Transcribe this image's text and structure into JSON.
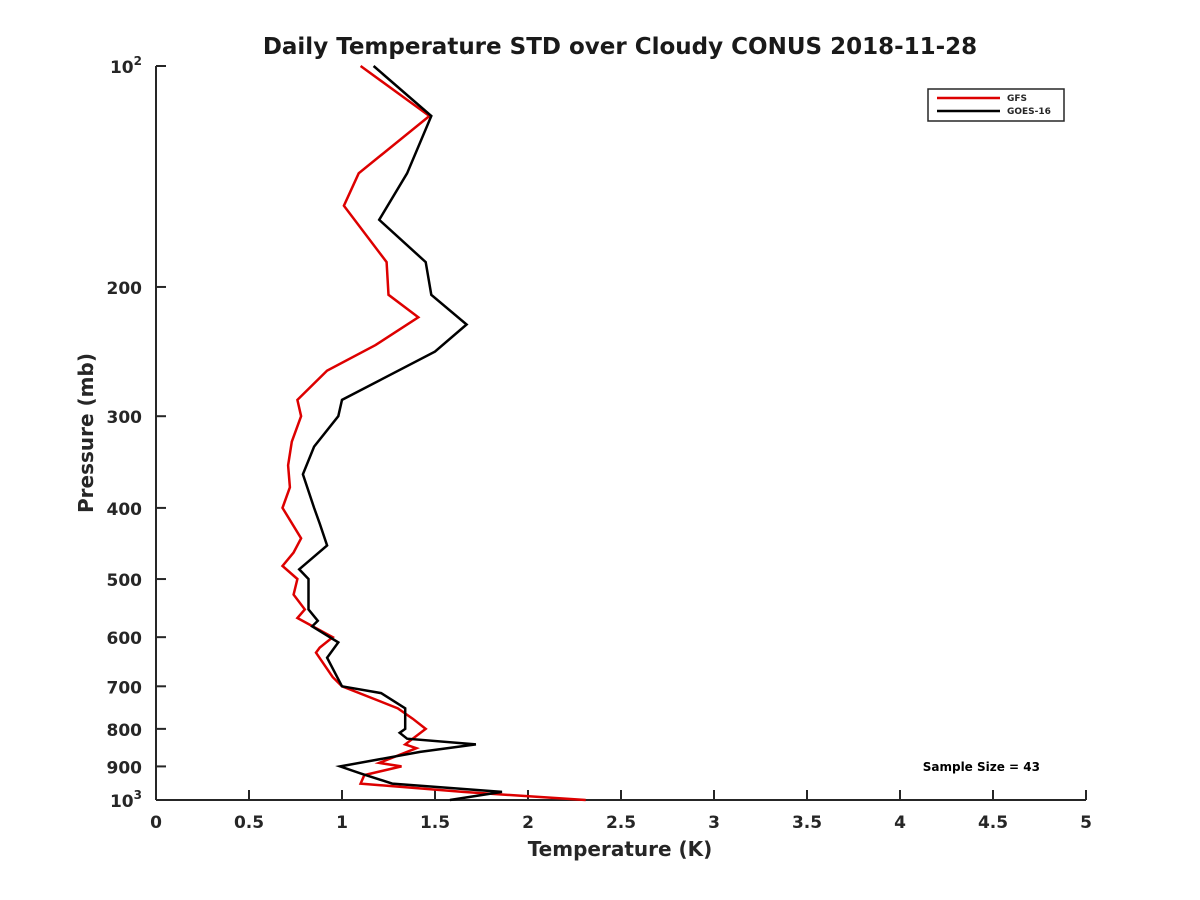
{
  "chart_data": {
    "type": "line",
    "title": "Daily Temperature STD over Cloudy CONUS 2018-11-28",
    "xlabel": "Temperature (K)",
    "ylabel": "Pressure (mb)",
    "xlim": [
      0,
      5
    ],
    "ylim": [
      100,
      1000
    ],
    "y_scale": "log",
    "y_reversed": true,
    "grid": false,
    "legend_position": "top-right",
    "annotation": "Sample Size = 43",
    "x_ticks": [
      {
        "value": 0,
        "label": "0"
      },
      {
        "value": 0.5,
        "label": "0.5"
      },
      {
        "value": 1,
        "label": "1"
      },
      {
        "value": 1.5,
        "label": "1.5"
      },
      {
        "value": 2,
        "label": "2"
      },
      {
        "value": 2.5,
        "label": "2.5"
      },
      {
        "value": 3,
        "label": "3"
      },
      {
        "value": 3.5,
        "label": "3.5"
      },
      {
        "value": 4,
        "label": "4"
      },
      {
        "value": 4.5,
        "label": "4.5"
      },
      {
        "value": 5,
        "label": "5"
      }
    ],
    "y_ticks": [
      {
        "value": 100,
        "label": "10",
        "sup": "2"
      },
      {
        "value": 200,
        "label": "200",
        "sup": ""
      },
      {
        "value": 300,
        "label": "300",
        "sup": ""
      },
      {
        "value": 400,
        "label": "400",
        "sup": ""
      },
      {
        "value": 500,
        "label": "500",
        "sup": ""
      },
      {
        "value": 600,
        "label": "600",
        "sup": ""
      },
      {
        "value": 700,
        "label": "700",
        "sup": ""
      },
      {
        "value": 800,
        "label": "800",
        "sup": ""
      },
      {
        "value": 900,
        "label": "900",
        "sup": ""
      },
      {
        "value": 1000,
        "label": "10",
        "sup": "3"
      }
    ],
    "series": [
      {
        "name": "GFS",
        "color": "#dd0000",
        "points": [
          [
            2.31,
            1000
          ],
          [
            1.65,
            975
          ],
          [
            1.1,
            950
          ],
          [
            1.12,
            925
          ],
          [
            1.32,
            900
          ],
          [
            1.2,
            890
          ],
          [
            1.4,
            850
          ],
          [
            1.34,
            840
          ],
          [
            1.45,
            800
          ],
          [
            1.38,
            775
          ],
          [
            1.3,
            750
          ],
          [
            1.0,
            700
          ],
          [
            0.95,
            680
          ],
          [
            0.86,
            630
          ],
          [
            0.88,
            620
          ],
          [
            0.95,
            600
          ],
          [
            0.76,
            565
          ],
          [
            0.8,
            550
          ],
          [
            0.74,
            525
          ],
          [
            0.76,
            500
          ],
          [
            0.68,
            480
          ],
          [
            0.74,
            460
          ],
          [
            0.78,
            440
          ],
          [
            0.68,
            400
          ],
          [
            0.72,
            375
          ],
          [
            0.71,
            350
          ],
          [
            0.73,
            325
          ],
          [
            0.78,
            300
          ],
          [
            0.76,
            285
          ],
          [
            0.92,
            260
          ],
          [
            1.18,
            240
          ],
          [
            1.41,
            220
          ],
          [
            1.25,
            205
          ],
          [
            1.24,
            185
          ],
          [
            1.01,
            155
          ],
          [
            1.09,
            140
          ],
          [
            1.47,
            117
          ],
          [
            1.1,
            100
          ]
        ]
      },
      {
        "name": "GOES-16",
        "color": "#000000",
        "points": [
          [
            1.58,
            1000
          ],
          [
            1.86,
            975
          ],
          [
            1.27,
            950
          ],
          [
            1.1,
            920
          ],
          [
            0.99,
            900
          ],
          [
            1.42,
            860
          ],
          [
            1.72,
            840
          ],
          [
            1.35,
            825
          ],
          [
            1.31,
            810
          ],
          [
            1.34,
            800
          ],
          [
            1.34,
            750
          ],
          [
            1.21,
            715
          ],
          [
            1.0,
            700
          ],
          [
            0.92,
            640
          ],
          [
            0.98,
            610
          ],
          [
            0.84,
            580
          ],
          [
            0.87,
            570
          ],
          [
            0.82,
            550
          ],
          [
            0.82,
            500
          ],
          [
            0.77,
            485
          ],
          [
            0.92,
            450
          ],
          [
            0.88,
            420
          ],
          [
            0.85,
            400
          ],
          [
            0.79,
            360
          ],
          [
            0.85,
            330
          ],
          [
            0.98,
            300
          ],
          [
            1.0,
            285
          ],
          [
            1.5,
            245
          ],
          [
            1.67,
            225
          ],
          [
            1.48,
            205
          ],
          [
            1.45,
            185
          ],
          [
            1.2,
            162
          ],
          [
            1.35,
            140
          ],
          [
            1.48,
            117
          ],
          [
            1.17,
            100
          ]
        ]
      }
    ]
  }
}
